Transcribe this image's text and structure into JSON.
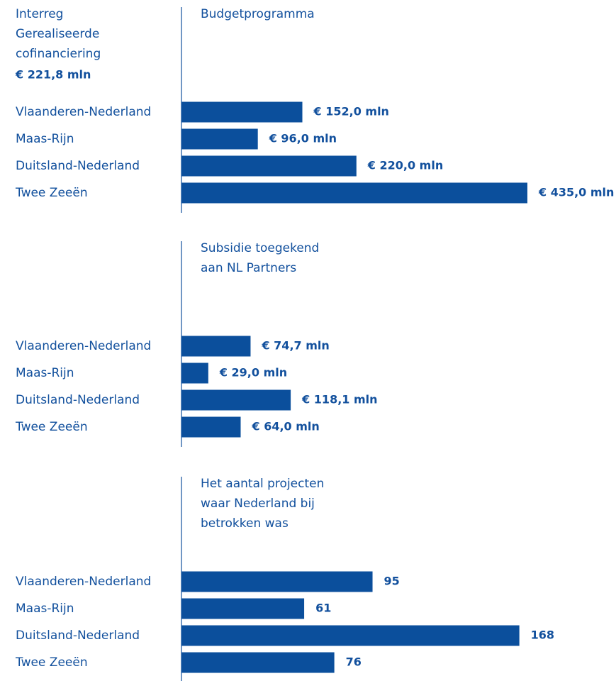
{
  "header": {
    "lines": [
      "Interreg",
      "Gerealiseerde",
      "cofinanciering"
    ],
    "value": "€ 221,8 mln"
  },
  "chart_data": [
    {
      "type": "bar",
      "title": [
        "Budgetprogramma"
      ],
      "categories": [
        "Vlaanderen-Nederland",
        "Maas-Rijn",
        "Duitsland-Nederland",
        "Twee Zeeën"
      ],
      "values": [
        152.0,
        96.0,
        220.0,
        435.0
      ],
      "value_labels": [
        "€ 152,0 mln",
        "€ 96,0 mln",
        "€ 220,0 mln",
        "€ 435,0 mln"
      ],
      "color": "#0b4f9c",
      "xlim": [
        0,
        435
      ]
    },
    {
      "type": "bar",
      "title": [
        "Subsidie toegekend",
        "aan NL Partners"
      ],
      "categories": [
        "Vlaanderen-Nederland",
        "Maas-Rijn",
        "Duitsland-Nederland",
        "Twee Zeeën"
      ],
      "values": [
        74.7,
        29.0,
        118.1,
        64.0
      ],
      "value_labels": [
        "€ 74,7 mln",
        "€ 29,0 mln",
        "€ 118,1 mln",
        "€ 64,0 mln"
      ],
      "color": "#0b4f9c",
      "xlim": [
        0,
        374
      ]
    },
    {
      "type": "bar",
      "title": [
        "Het aantal projecten",
        "waar Nederland bij",
        "betrokken was"
      ],
      "categories": [
        "Vlaanderen-Nederland",
        "Maas-Rijn",
        "Duitsland-Nederland",
        "Twee Zeeën"
      ],
      "values": [
        95,
        61,
        168,
        76
      ],
      "color": "#0b4f9c",
      "xlim": [
        0,
        172
      ]
    }
  ]
}
